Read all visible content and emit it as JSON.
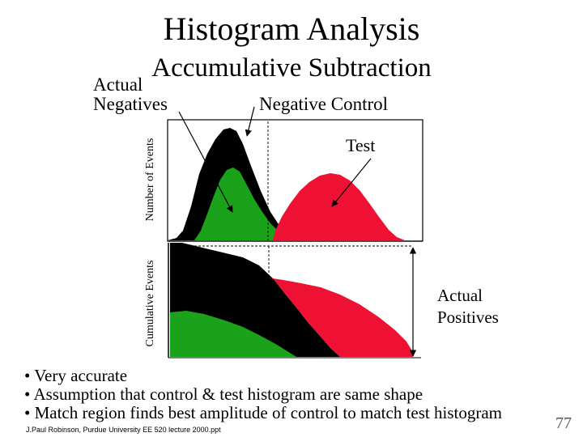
{
  "title": "Histogram Analysis",
  "subtitle": "Accumulative Subtraction",
  "labels": {
    "actual_negatives_line1": "Actual",
    "actual_negatives_line2": "Negatives",
    "negative_control": "Negative Control",
    "test": "Test",
    "actual_positives_line1": "Actual",
    "actual_positives_line2": "Positives",
    "y_axis_top": "Number of Events",
    "y_axis_bottom": "Cumulative Events"
  },
  "colors": {
    "control": "#000000",
    "actual_negatives": "#1aa21a",
    "test": "#ee1133"
  },
  "bullets": [
    "• Very accurate",
    "• Assumption that control & test histogram are same shape",
    "• Match region finds best amplitude of control to match test histogram"
  ],
  "footer": "J.Paul Robinson, Purdue University  EE 520 lecture 2000.ppt",
  "page_number": "77"
}
